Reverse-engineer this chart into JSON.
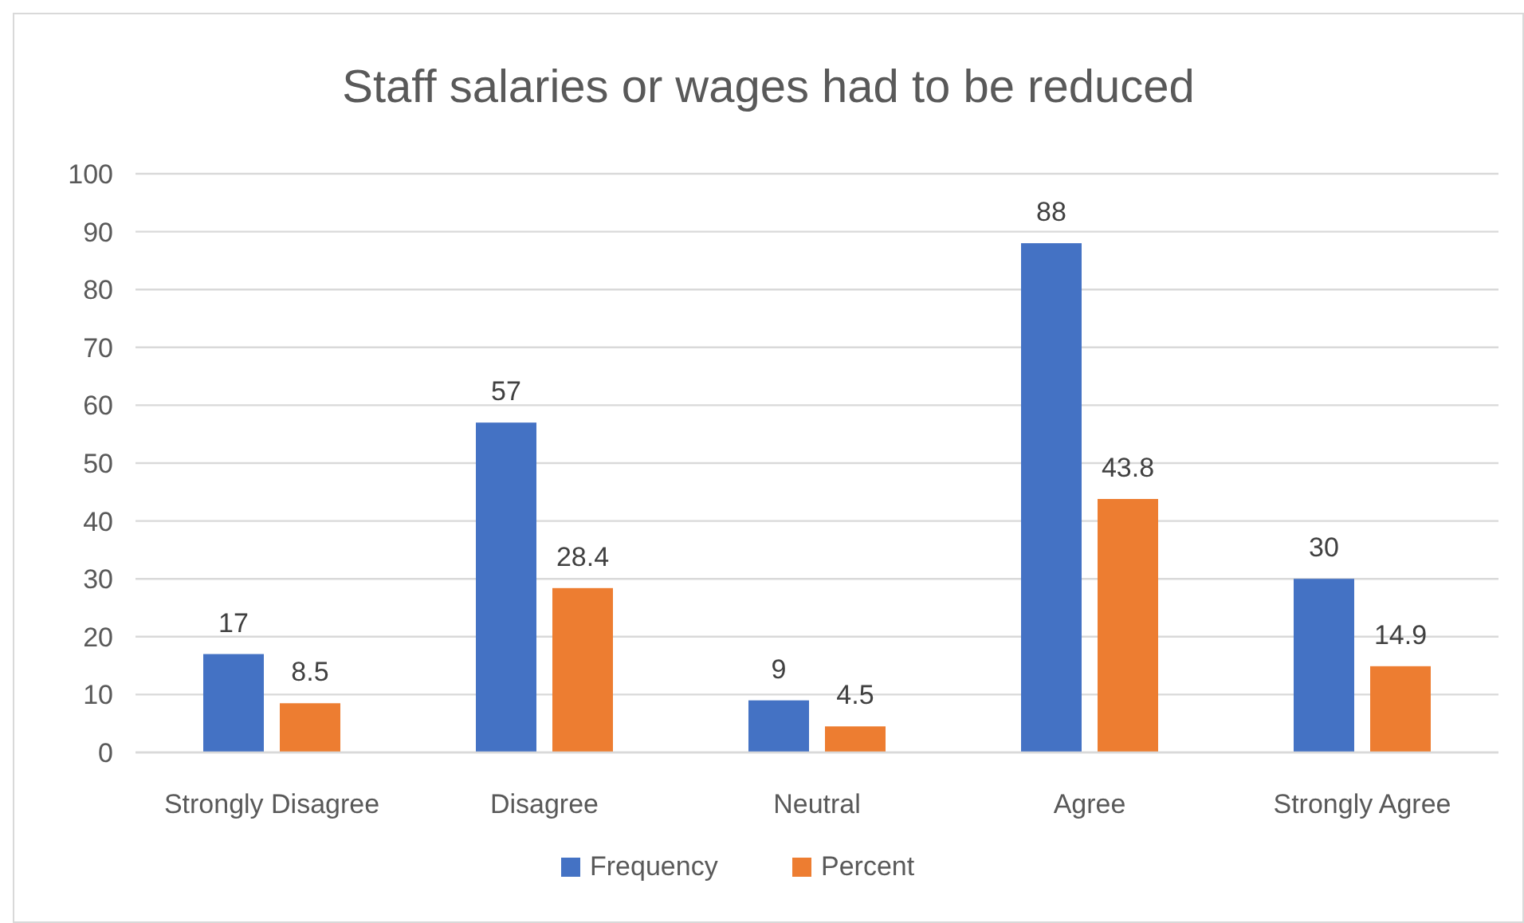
{
  "chart_data": {
    "type": "bar",
    "title": "Staff salaries or wages had to be reduced",
    "categories": [
      "Strongly Disagree",
      "Disagree",
      "Neutral",
      "Agree",
      "Strongly Agree"
    ],
    "series": [
      {
        "name": "Frequency",
        "color": "#4472c4",
        "values": [
          17,
          57,
          9,
          88,
          30
        ]
      },
      {
        "name": "Percent",
        "color": "#ed7d31",
        "values": [
          8.5,
          28.4,
          4.5,
          43.8,
          14.9
        ]
      }
    ],
    "ylim": [
      0,
      100
    ],
    "yticks": [
      0,
      10,
      20,
      30,
      40,
      50,
      60,
      70,
      80,
      90,
      100
    ],
    "grid": "y",
    "legend": "bottom",
    "data_labels": true
  }
}
